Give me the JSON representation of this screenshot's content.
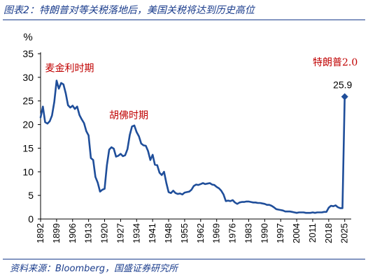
{
  "figure": {
    "title": "图表2：特朗普对等关税落地后，美国关税将达到历史高位",
    "source": "资料来源：Bloomberg，国盛证券研究所"
  },
  "chart_data": {
    "type": "line",
    "ylabel": "%",
    "ylim": [
      0,
      35
    ],
    "yticks": [
      0,
      5,
      10,
      15,
      20,
      25,
      30,
      35
    ],
    "xlim": [
      1892,
      2026
    ],
    "xticks": [
      1892,
      1899,
      1906,
      1913,
      1920,
      1927,
      1934,
      1941,
      1948,
      1955,
      1962,
      1969,
      1976,
      1983,
      1990,
      1997,
      2004,
      2011,
      2018,
      2025
    ],
    "grid": false,
    "line_color": "#1f4e9a",
    "annotations": [
      {
        "text": "麦金利时期",
        "x": 1894,
        "y": 31.2,
        "color": "#c00000"
      },
      {
        "text": "胡佛时期",
        "x": 1922,
        "y": 21.3,
        "color": "#c00000"
      },
      {
        "text": "特朗普2.0",
        "x": 2011,
        "y": 32.5,
        "color": "#c00000"
      }
    ],
    "point_label": {
      "text": "25.9",
      "x": 2025,
      "y": 25.9
    },
    "series": [
      {
        "x": [
          1892,
          1893,
          1894,
          1895,
          1896,
          1897,
          1898,
          1899,
          1900,
          1901,
          1902,
          1903,
          1904,
          1905,
          1906,
          1907,
          1908,
          1909,
          1910,
          1911,
          1912,
          1913,
          1914,
          1915,
          1916,
          1917,
          1918,
          1919,
          1920,
          1921,
          1922,
          1923,
          1924,
          1925,
          1926,
          1927,
          1928,
          1929,
          1930,
          1931,
          1932,
          1933,
          1934,
          1935,
          1936,
          1937,
          1938,
          1939,
          1940,
          1941,
          1942,
          1943,
          1944,
          1945,
          1946,
          1947,
          1948,
          1949,
          1950,
          1951,
          1952,
          1953,
          1954,
          1955,
          1956,
          1957,
          1958,
          1959,
          1960,
          1961,
          1962,
          1963,
          1964,
          1965,
          1966,
          1967,
          1968,
          1969,
          1970,
          1971,
          1972,
          1973,
          1974,
          1975,
          1976,
          1977,
          1978,
          1979,
          1980,
          1981,
          1982,
          1983,
          1984,
          1985,
          1986,
          1987,
          1988,
          1989,
          1990,
          1991,
          1992,
          1993,
          1994,
          1995,
          1996,
          1997,
          1998,
          1999,
          2000,
          2001,
          2002,
          2003,
          2004,
          2005,
          2006,
          2007,
          2008,
          2009,
          2010,
          2011,
          2012,
          2013,
          2014,
          2015,
          2016,
          2017,
          2018,
          2019,
          2020,
          2021,
          2022,
          2023,
          2024,
          2025
        ],
        "y": [
          21.5,
          23.8,
          20.5,
          20.2,
          20.7,
          21.9,
          24.8,
          29.3,
          27.6,
          28.8,
          28.5,
          26.6,
          24.1,
          23.6,
          24.0,
          23.3,
          23.8,
          22.0,
          21.1,
          20.3,
          18.6,
          17.7,
          12.9,
          12.5,
          8.9,
          7.7,
          5.8,
          6.2,
          6.4,
          11.4,
          14.7,
          15.2,
          14.9,
          13.2,
          13.4,
          13.8,
          13.3,
          13.5,
          14.8,
          17.8,
          19.6,
          19.8,
          18.4,
          17.5,
          16.0,
          15.6,
          15.5,
          14.4,
          12.5,
          13.6,
          11.5,
          11.4,
          9.8,
          9.3,
          10.0,
          7.6,
          5.7,
          5.5,
          6.0,
          5.5,
          5.3,
          5.4,
          5.2,
          5.6,
          5.7,
          5.8,
          6.2,
          7.0,
          7.3,
          7.2,
          7.4,
          7.6,
          7.4,
          7.5,
          7.6,
          7.3,
          7.2,
          6.8,
          6.5,
          6.0,
          5.2,
          3.8,
          3.9,
          3.8,
          4.0,
          3.5,
          3.2,
          3.5,
          3.6,
          3.6,
          3.7,
          3.7,
          3.6,
          3.5,
          3.5,
          3.4,
          3.4,
          3.3,
          3.2,
          3.0,
          3.0,
          2.8,
          2.5,
          2.1,
          2.0,
          1.9,
          1.8,
          1.6,
          1.6,
          1.6,
          1.5,
          1.4,
          1.3,
          1.4,
          1.4,
          1.4,
          1.3,
          1.3,
          1.3,
          1.4,
          1.3,
          1.4,
          1.4,
          1.4,
          1.5,
          1.5,
          2.4,
          2.8,
          2.7,
          2.9,
          2.5,
          2.3,
          2.3,
          25.9
        ]
      }
    ]
  }
}
